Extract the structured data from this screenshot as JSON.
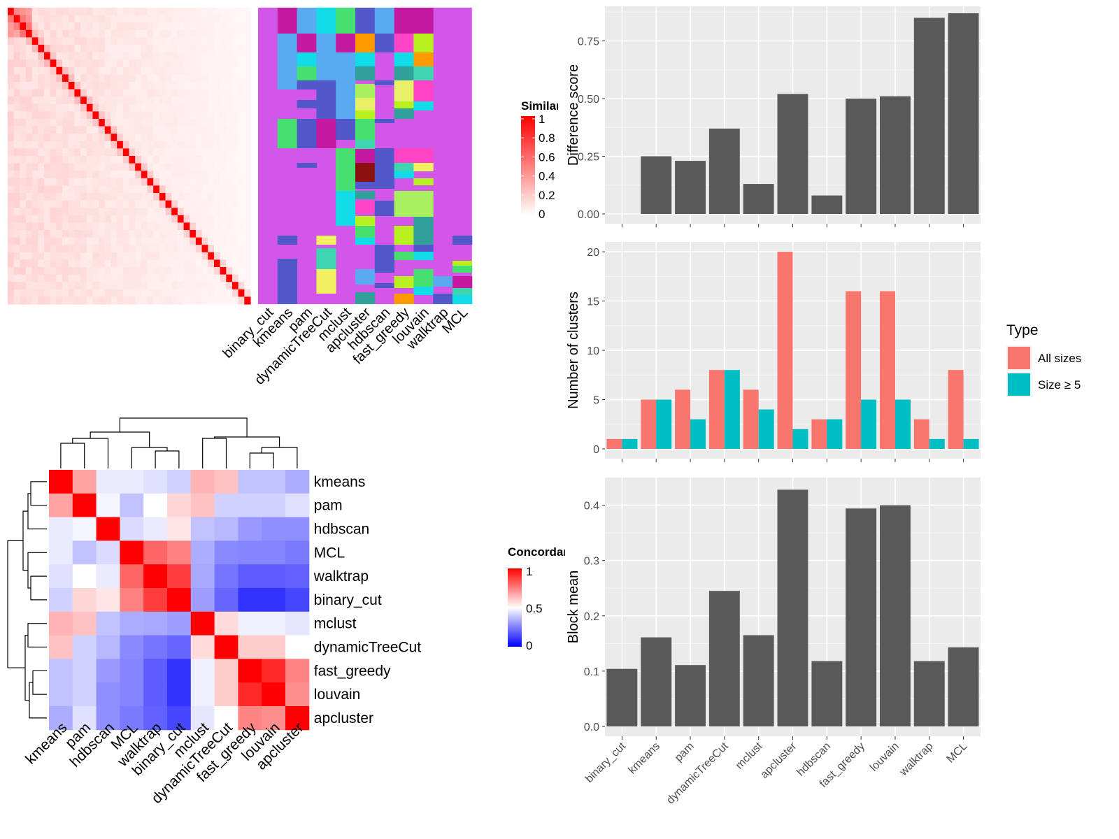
{
  "methods": [
    "binary_cut",
    "kmeans",
    "pam",
    "dynamicTreeCut",
    "mclust",
    "apcluster",
    "hdbscan",
    "fast_greedy",
    "louvain",
    "walktrap",
    "MCL"
  ],
  "heatmap_legend": {
    "title": "Similarity",
    "ticks": [
      "1",
      "0.8",
      "0.6",
      "0.4",
      "0.2",
      "0"
    ]
  },
  "concordance": {
    "title": "Concordance",
    "ticks": [
      "1",
      "0.5",
      "0"
    ],
    "order": [
      "kmeans",
      "pam",
      "hdbscan",
      "MCL",
      "walktrap",
      "binary_cut",
      "mclust",
      "dynamicTreeCut",
      "fast_greedy",
      "louvain",
      "apcluster"
    ],
    "matrix": [
      [
        1.0,
        0.68,
        0.46,
        0.46,
        0.44,
        0.41,
        0.65,
        0.62,
        0.38,
        0.38,
        0.34
      ],
      [
        0.68,
        1.0,
        0.48,
        0.38,
        0.5,
        0.58,
        0.62,
        0.41,
        0.41,
        0.41,
        0.44
      ],
      [
        0.46,
        0.48,
        1.0,
        0.43,
        0.46,
        0.55,
        0.38,
        0.36,
        0.3,
        0.28,
        0.28
      ],
      [
        0.46,
        0.38,
        0.43,
        1.0,
        0.8,
        0.75,
        0.34,
        0.27,
        0.26,
        0.26,
        0.24
      ],
      [
        0.44,
        0.5,
        0.46,
        0.8,
        1.0,
        0.88,
        0.33,
        0.23,
        0.18,
        0.18,
        0.19
      ],
      [
        0.41,
        0.58,
        0.55,
        0.75,
        0.88,
        1.0,
        0.31,
        0.2,
        0.1,
        0.1,
        0.14
      ],
      [
        0.65,
        0.62,
        0.38,
        0.34,
        0.33,
        0.31,
        1.0,
        0.57,
        0.47,
        0.47,
        0.45
      ],
      [
        0.62,
        0.41,
        0.36,
        0.27,
        0.23,
        0.2,
        0.57,
        1.0,
        0.6,
        0.6,
        0.5
      ],
      [
        0.38,
        0.41,
        0.3,
        0.26,
        0.18,
        0.1,
        0.47,
        0.6,
        1.0,
        0.92,
        0.74
      ],
      [
        0.38,
        0.41,
        0.28,
        0.26,
        0.18,
        0.1,
        0.47,
        0.6,
        0.92,
        1.0,
        0.72
      ],
      [
        0.34,
        0.44,
        0.28,
        0.24,
        0.19,
        0.14,
        0.45,
        0.5,
        0.74,
        0.72,
        1.0
      ]
    ]
  },
  "chart_data": [
    {
      "type": "bar",
      "categories": [
        "binary_cut",
        "kmeans",
        "pam",
        "dynamicTreeCut",
        "mclust",
        "apcluster",
        "hdbscan",
        "fast_greedy",
        "louvain",
        "walktrap",
        "MCL"
      ],
      "values": [
        0.0,
        0.25,
        0.23,
        0.37,
        0.13,
        0.52,
        0.08,
        0.5,
        0.51,
        0.85,
        0.87
      ],
      "ylabel": "Difference score",
      "ylim": [
        0,
        0.9
      ],
      "yticks": [
        0.0,
        0.25,
        0.5,
        0.75
      ],
      "ytick_labels": [
        "0.00",
        "0.25",
        "0.50",
        "0.75"
      ],
      "grid": true
    },
    {
      "type": "bar",
      "categories": [
        "binary_cut",
        "kmeans",
        "pam",
        "dynamicTreeCut",
        "mclust",
        "apcluster",
        "hdbscan",
        "fast_greedy",
        "louvain",
        "walktrap",
        "MCL"
      ],
      "series": [
        {
          "name": "All sizes",
          "color": "#F8766D",
          "values": [
            1,
            5,
            6,
            8,
            6,
            20,
            3,
            16,
            16,
            3,
            8
          ]
        },
        {
          "name": "Size ≥ 5",
          "color": "#00BFC4",
          "values": [
            1,
            5,
            3,
            8,
            4,
            2,
            3,
            5,
            5,
            1,
            1
          ]
        }
      ],
      "ylabel": "Number of clusters",
      "ylim": [
        0,
        21
      ],
      "yticks": [
        0,
        5,
        10,
        15,
        20
      ],
      "legend": {
        "title": "Type",
        "placement": "right"
      },
      "grid": true
    },
    {
      "type": "bar",
      "categories": [
        "binary_cut",
        "kmeans",
        "pam",
        "dynamicTreeCut",
        "mclust",
        "apcluster",
        "hdbscan",
        "fast_greedy",
        "louvain",
        "walktrap",
        "MCL"
      ],
      "values": [
        0.104,
        0.161,
        0.111,
        0.245,
        0.165,
        0.428,
        0.118,
        0.394,
        0.4,
        0.118,
        0.143
      ],
      "ylabel": "Block mean",
      "ylim": [
        0,
        0.45
      ],
      "yticks": [
        0.0,
        0.1,
        0.2,
        0.3,
        0.4
      ],
      "ytick_labels": [
        "0.0",
        "0.1",
        "0.2",
        "0.3",
        "0.4"
      ],
      "grid": true
    }
  ]
}
